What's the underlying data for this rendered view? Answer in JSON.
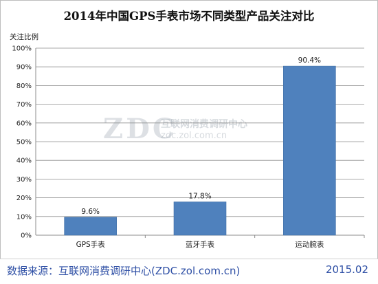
{
  "chart_data": {
    "type": "bar",
    "title": "2014年中国GPS手表市场不同类型产品关注对比",
    "ylabel": "关注比例",
    "xlabel": "",
    "categories": [
      "GPS手表",
      "蓝牙手表",
      "运动腕表"
    ],
    "values": [
      9.6,
      17.8,
      90.4
    ],
    "data_labels": [
      "9.6%",
      "17.8%",
      "90.4%"
    ],
    "ylim": [
      0,
      100
    ],
    "yticks": [
      0,
      10,
      20,
      30,
      40,
      50,
      60,
      70,
      80,
      90,
      100
    ],
    "ytick_labels": [
      "0%",
      "10%",
      "20%",
      "30%",
      "40%",
      "50%",
      "60%",
      "70%",
      "80%",
      "90%",
      "100%"
    ],
    "grid": true,
    "legend": "none",
    "bar_color": "#4f81bd"
  },
  "watermark": {
    "logo": "ZDC",
    "cn_text": "互联网消费调研中心",
    "url": "zdc.zol.com.cn"
  },
  "footer": {
    "source": "数据来源：互联网消费调研中心(ZDC.zol.com.cn)",
    "date": "2015.02"
  }
}
